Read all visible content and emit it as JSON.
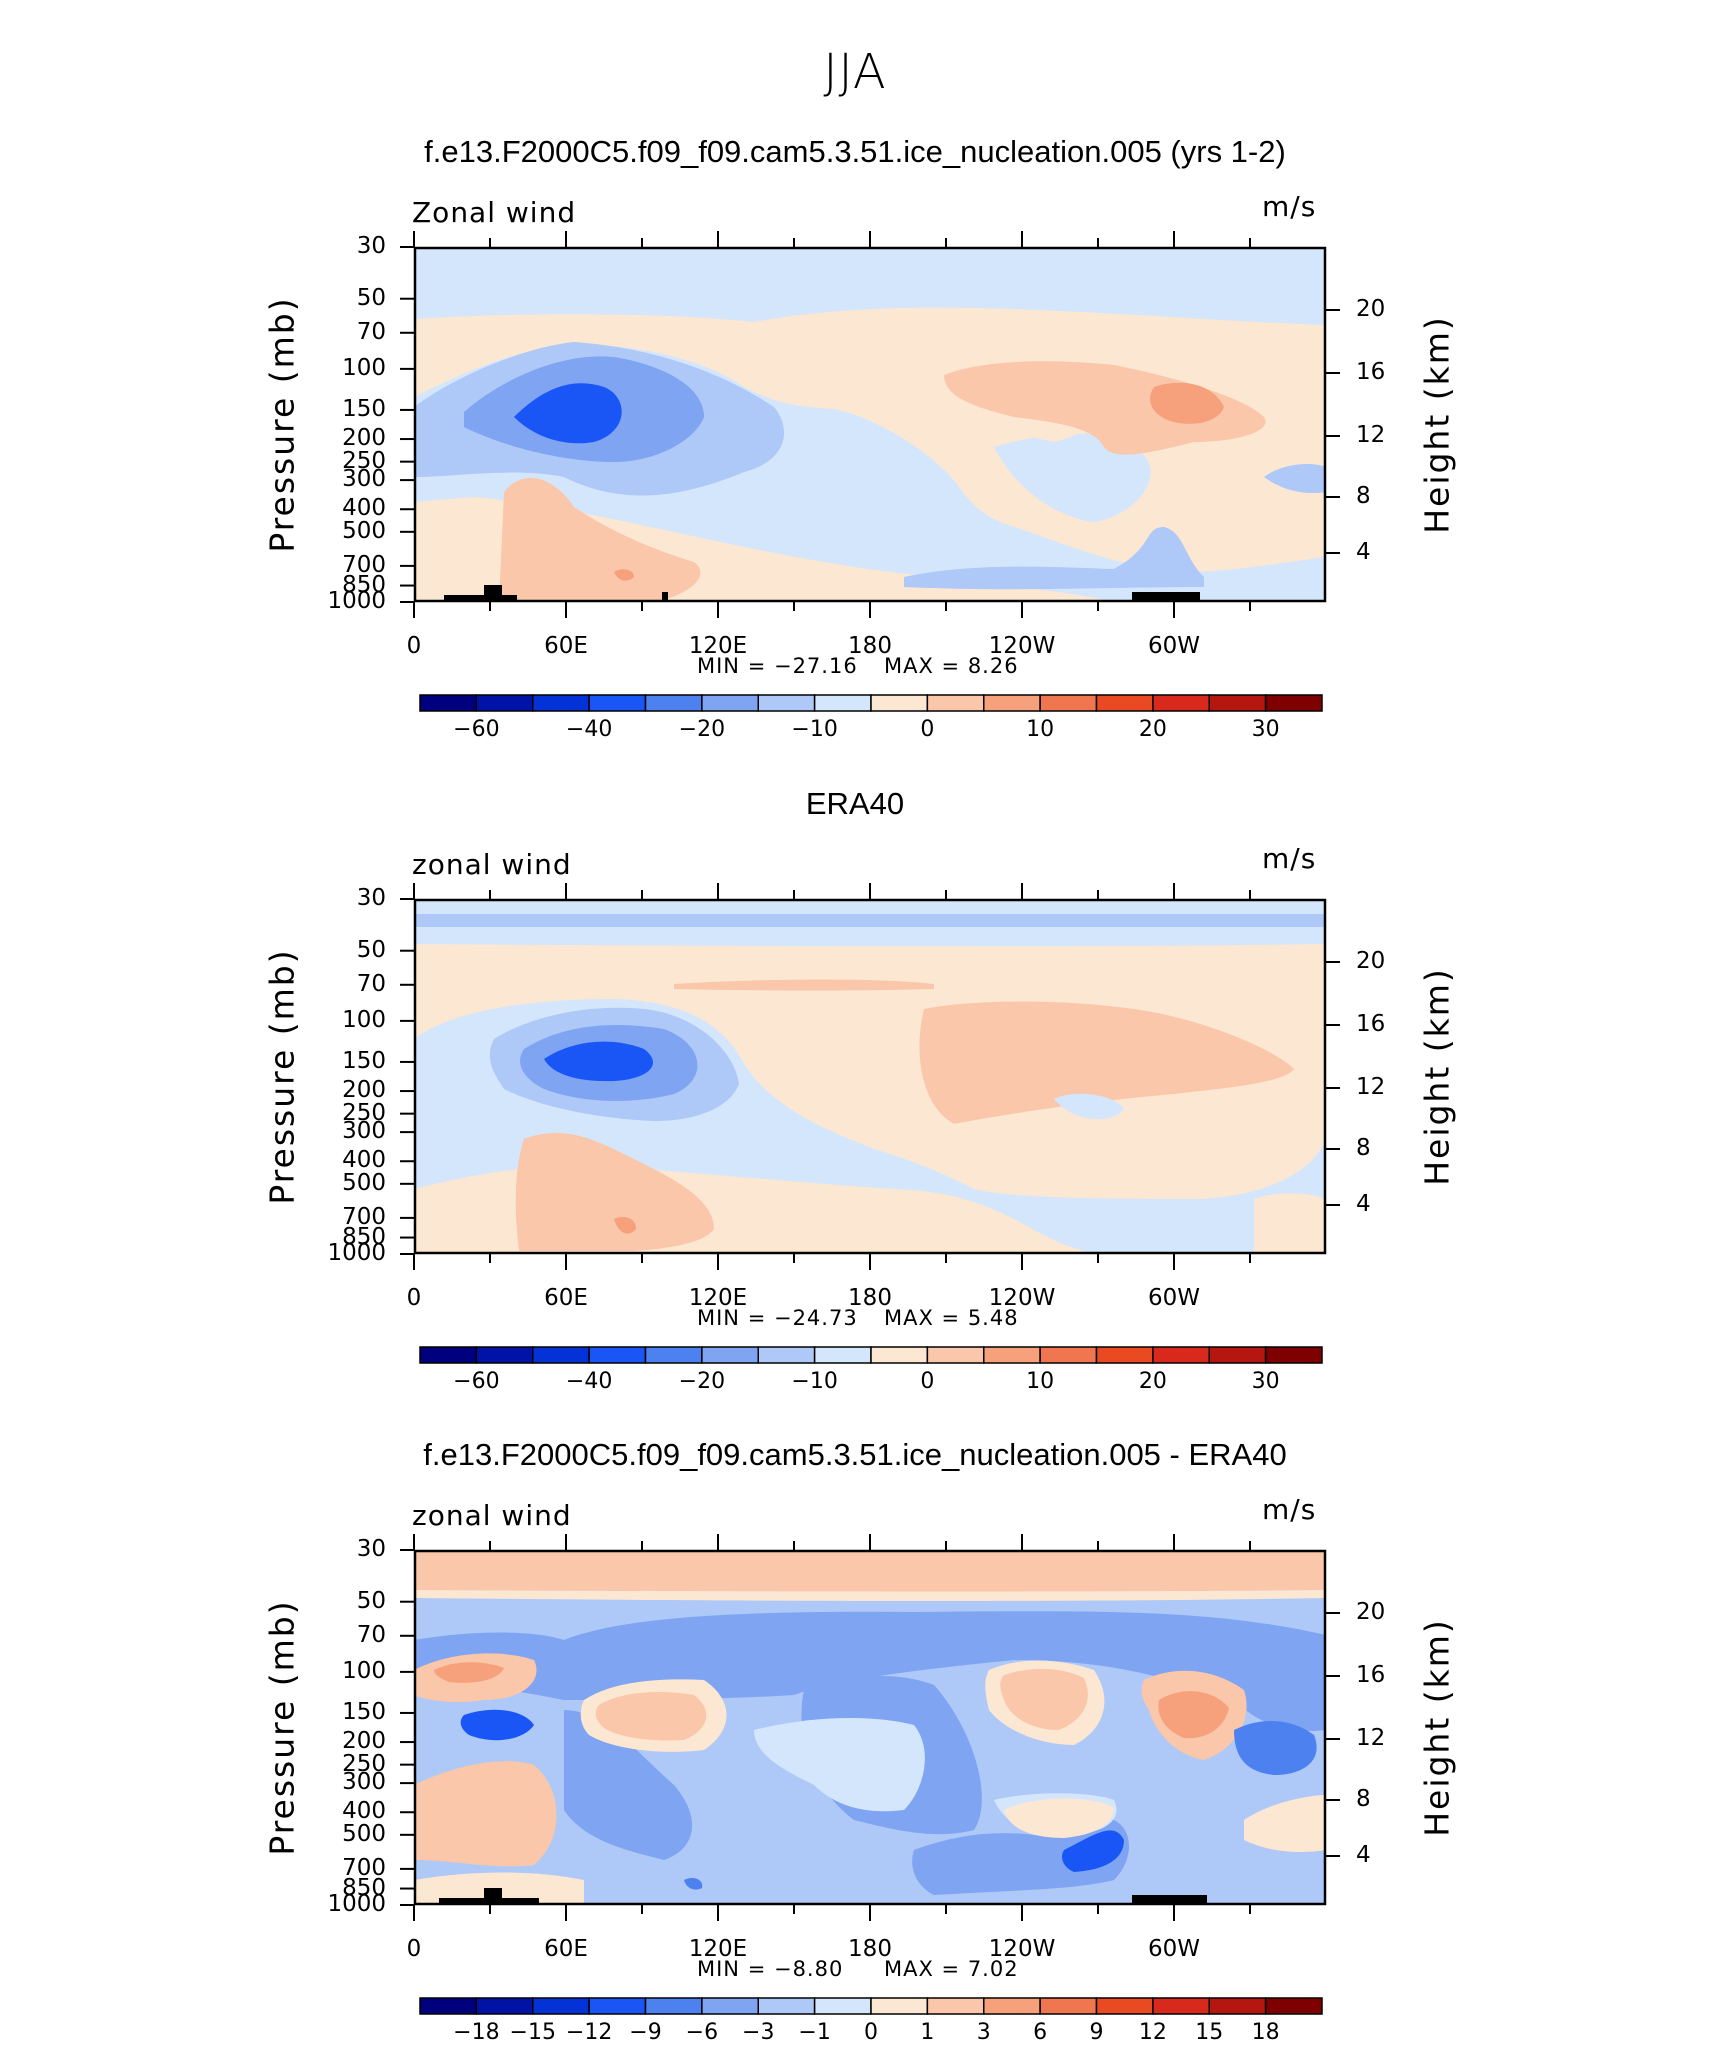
{
  "page_title": "JJA",
  "chart_data": [
    {
      "type": "heatmap",
      "title": "f.e13.F2000C5.f09_f09.cam5.3.51.ice_nucleation.005 (yrs 1-2)",
      "variable_label": "Zonal wind",
      "units": "m/s",
      "ylabel": "Pressure (mb)",
      "ylabel_right": "Height (km)",
      "pressure_ticks": [
        "30",
        "50",
        "70",
        "100",
        "150",
        "200",
        "250",
        "300",
        "400",
        "500",
        "700",
        "850",
        "1000"
      ],
      "height_ticks": [
        "20",
        "16",
        "12",
        "8",
        "4"
      ],
      "x_ticks": [
        "0",
        "60E",
        "120E",
        "180",
        "120W",
        "60W"
      ],
      "min_label": "MIN = −27.16",
      "max_label": "MAX = 8.26",
      "min": -27.16,
      "max": 8.26,
      "colorbar_ticks": [
        "−60",
        "−40",
        "−20",
        "−10",
        "0",
        "10",
        "20",
        "30"
      ],
      "colorbar_colors": [
        "#00007f",
        "#0013a6",
        "#0332d6",
        "#1a55f5",
        "#4e81f0",
        "#7ea4f2",
        "#aec8f7",
        "#d4e6fb",
        "#fce7d3",
        "#fac7aa",
        "#f6a07c",
        "#f07650",
        "#ea4a22",
        "#d9291c",
        "#b5160f",
        "#7f0000"
      ]
    },
    {
      "type": "heatmap",
      "title": "ERA40",
      "variable_label": "zonal wind",
      "units": "m/s",
      "ylabel": "Pressure (mb)",
      "ylabel_right": "Height (km)",
      "pressure_ticks": [
        "30",
        "50",
        "70",
        "100",
        "150",
        "200",
        "250",
        "300",
        "400",
        "500",
        "700",
        "850",
        "1000"
      ],
      "height_ticks": [
        "20",
        "16",
        "12",
        "8",
        "4"
      ],
      "x_ticks": [
        "0",
        "60E",
        "120E",
        "180",
        "120W",
        "60W"
      ],
      "min_label": "MIN = −24.73",
      "max_label": "MAX = 5.48",
      "min": -24.73,
      "max": 5.48,
      "colorbar_ticks": [
        "−60",
        "−40",
        "−20",
        "−10",
        "0",
        "10",
        "20",
        "30"
      ],
      "colorbar_colors": [
        "#00007f",
        "#0013a6",
        "#0332d6",
        "#1a55f5",
        "#4e81f0",
        "#7ea4f2",
        "#aec8f7",
        "#d4e6fb",
        "#fce7d3",
        "#fac7aa",
        "#f6a07c",
        "#f07650",
        "#ea4a22",
        "#d9291c",
        "#b5160f",
        "#7f0000"
      ]
    },
    {
      "type": "heatmap",
      "title": "f.e13.F2000C5.f09_f09.cam5.3.51.ice_nucleation.005 - ERA40",
      "variable_label": "zonal wind",
      "units": "m/s",
      "ylabel": "Pressure (mb)",
      "ylabel_right": "Height (km)",
      "pressure_ticks": [
        "30",
        "50",
        "70",
        "100",
        "150",
        "200",
        "250",
        "300",
        "400",
        "500",
        "700",
        "850",
        "1000"
      ],
      "height_ticks": [
        "20",
        "16",
        "12",
        "8",
        "4"
      ],
      "x_ticks": [
        "0",
        "60E",
        "120E",
        "180",
        "120W",
        "60W"
      ],
      "min_label": "MIN = −8.80",
      "max_label": "MAX = 7.02",
      "min": -8.8,
      "max": 7.02,
      "colorbar_ticks": [
        "−18",
        "−15",
        "−12",
        "−9",
        "−6",
        "−3",
        "−1",
        "0",
        "1",
        "3",
        "6",
        "9",
        "12",
        "15",
        "18"
      ],
      "colorbar_colors": [
        "#00007f",
        "#0013a6",
        "#0332d6",
        "#1a55f5",
        "#4e81f0",
        "#7ea4f2",
        "#aec8f7",
        "#d4e6fb",
        "#fce7d3",
        "#fac7aa",
        "#f6a07c",
        "#f07650",
        "#ea4a22",
        "#d9291c",
        "#b5160f",
        "#7f0000"
      ]
    }
  ]
}
